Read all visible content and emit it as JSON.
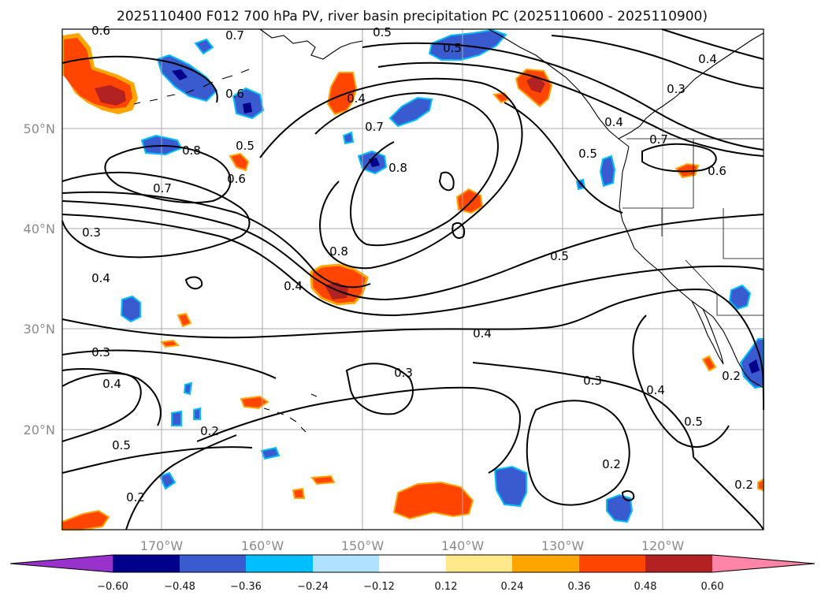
{
  "title": "2025110400 F012 700 hPa PV, river basin precipitation PC (2025110600 - 2025110900)",
  "axes": {
    "lon_ticks": [
      "170°W",
      "160°W",
      "150°W",
      "140°W",
      "130°W",
      "120°W"
    ],
    "lat_ticks": [
      "50°N",
      "40°N",
      "30°N",
      "20°N"
    ]
  },
  "colorbar": {
    "ticks": [
      "−0.60",
      "−0.48",
      "−0.36",
      "−0.24",
      "−0.12",
      "0.12",
      "0.24",
      "0.36",
      "0.48",
      "0.60"
    ],
    "colors": [
      "#9932cc",
      "#00008b",
      "#3a5bd0",
      "#00bfff",
      "#b0e2ff",
      "#ffffff",
      "#ffe98a",
      "#ffa500",
      "#ff4500",
      "#b22222",
      "#ff85a8"
    ]
  },
  "contour_labels": [
    "0.6",
    "0.7",
    "0.5",
    "0.5",
    "0.4",
    "0.3",
    "0.6",
    "0.4",
    "0.7",
    "0.8",
    "0.5",
    "0.8",
    "0.6",
    "0.7",
    "0.4",
    "0.5",
    "0.7",
    "0.6",
    "0.3",
    "0.4",
    "0.8",
    "0.4",
    "0.5",
    "0.4",
    "0.3",
    "0.4",
    "0.3",
    "0.3",
    "0.4",
    "0.5",
    "0.2",
    "0.2",
    "0.2",
    "0.5",
    "0.2",
    "0.2"
  ]
}
